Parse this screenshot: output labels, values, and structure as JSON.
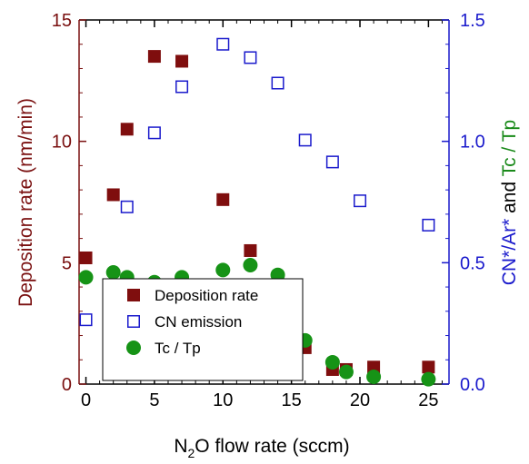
{
  "chart_data": {
    "type": "scatter",
    "title": "",
    "xlabel": {
      "base": "N",
      "sub": "2",
      "rest": "O  flow rate (sccm)"
    },
    "ylabel_left": "Deposition rate (nm/min)",
    "ylabel_right": [
      {
        "text": "CN*/Ar*",
        "color": "#1a1acc"
      },
      {
        "text": " and ",
        "color": "#000000"
      },
      {
        "text": "Tc / Tp",
        "color": "#1a8a1a"
      }
    ],
    "xlim": [
      -0.5,
      26.5
    ],
    "ylim_left": [
      0,
      15
    ],
    "ylim_right": [
      0,
      1.5
    ],
    "x_ticks": [
      "0",
      "5",
      "10",
      "15",
      "20",
      "25"
    ],
    "y_ticks_left": [
      "0",
      "5",
      "10",
      "15"
    ],
    "y_ticks_right": [
      "0.0",
      "0.5",
      "1.0",
      "1.5"
    ],
    "colors": {
      "left_axis": "#7a1010",
      "right_axis": "#1a1acc",
      "deposition": "#7f0e0e",
      "cn": "#1a1acc",
      "tc": "#169316"
    },
    "legend": {
      "placement": "lower-left",
      "entries": [
        "Deposition rate",
        "CN emission",
        "Tc / Tp"
      ]
    },
    "series": [
      {
        "name": "Deposition rate",
        "axis": "left",
        "marker": "filled-square",
        "x": [
          0,
          2,
          3,
          5,
          7,
          10,
          12,
          14,
          16,
          18,
          19,
          21,
          25
        ],
        "values": [
          5.2,
          7.8,
          10.5,
          13.5,
          13.3,
          7.6,
          5.5,
          4.0,
          1.5,
          0.6,
          0.6,
          0.7,
          0.7
        ]
      },
      {
        "name": "CN emission",
        "axis": "right",
        "marker": "open-square",
        "x": [
          0,
          3,
          5,
          7,
          10,
          12,
          14,
          16,
          18,
          20,
          25
        ],
        "values": [
          0.265,
          0.73,
          1.035,
          1.225,
          1.4,
          1.345,
          1.24,
          1.005,
          0.915,
          0.755,
          0.655
        ]
      },
      {
        "name": "Tc / Tp",
        "axis": "right",
        "marker": "filled-circle",
        "x": [
          0,
          2,
          3,
          5,
          7,
          10,
          12,
          14,
          16,
          18,
          19,
          21,
          25
        ],
        "values": [
          0.44,
          0.46,
          0.44,
          0.42,
          0.44,
          0.47,
          0.49,
          0.45,
          0.18,
          0.09,
          0.05,
          0.03,
          0.02
        ]
      }
    ]
  }
}
